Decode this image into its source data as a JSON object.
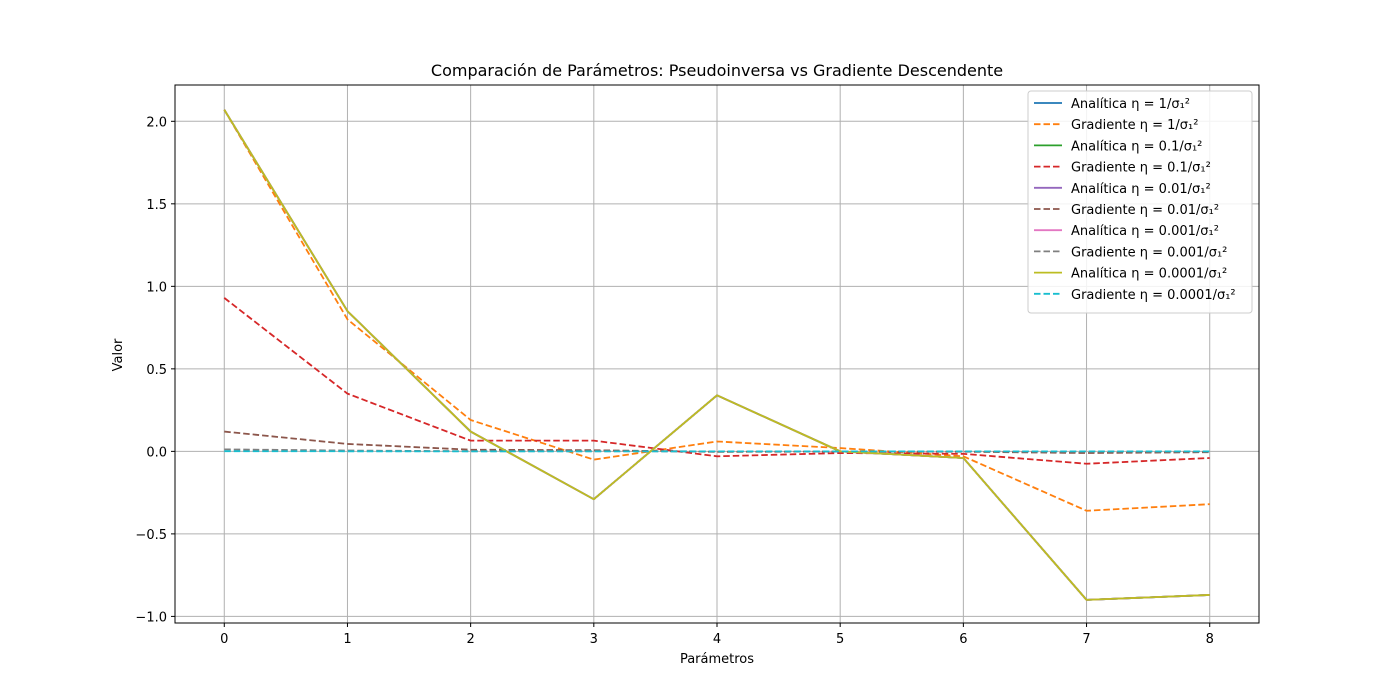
{
  "chart_data": {
    "type": "line",
    "title": "Comparación de Parámetros: Pseudoinversa vs Gradiente Descendente",
    "xlabel": "Parámetros",
    "ylabel": "Valor",
    "x": [
      0,
      1,
      2,
      3,
      4,
      5,
      6,
      7,
      8
    ],
    "xlim": [
      -0.4,
      8.4
    ],
    "ylim": [
      -1.04,
      2.22
    ],
    "xticks": [
      "0",
      "1",
      "2",
      "3",
      "4",
      "5",
      "6",
      "7",
      "8"
    ],
    "yticks": [
      -1.0,
      -0.5,
      0.0,
      0.5,
      1.0,
      1.5,
      2.0
    ],
    "ytick_labels": [
      "−1.0",
      "−0.5",
      "0.0",
      "0.5",
      "1.0",
      "1.5",
      "2.0"
    ],
    "grid": true,
    "legend_position": "top-right",
    "series": [
      {
        "name": "Analítica η = 1/σ₁²",
        "color": "#1f77b4",
        "dash": false,
        "values": [
          2.07,
          0.85,
          0.12,
          -0.29,
          0.34,
          0.0,
          -0.04,
          -0.9,
          -0.87
        ]
      },
      {
        "name": "Gradiente η = 1/σ₁²",
        "color": "#ff7f0e",
        "dash": true,
        "values": [
          2.07,
          0.8,
          0.19,
          -0.05,
          0.06,
          0.02,
          -0.03,
          -0.36,
          -0.32
        ]
      },
      {
        "name": "Analítica η = 0.1/σ₁²",
        "color": "#2ca02c",
        "dash": false,
        "values": [
          2.07,
          0.85,
          0.12,
          -0.29,
          0.34,
          0.0,
          -0.04,
          -0.9,
          -0.87
        ]
      },
      {
        "name": "Gradiente η = 0.1/σ₁²",
        "color": "#d62728",
        "dash": true,
        "values": [
          0.93,
          0.35,
          0.065,
          0.065,
          -0.03,
          -0.01,
          -0.015,
          -0.075,
          -0.04
        ]
      },
      {
        "name": "Analítica η = 0.01/σ₁²",
        "color": "#9467bd",
        "dash": false,
        "values": [
          2.07,
          0.85,
          0.12,
          -0.29,
          0.34,
          0.0,
          -0.04,
          -0.9,
          -0.87
        ]
      },
      {
        "name": "Gradiente η = 0.01/σ₁²",
        "color": "#8c564b",
        "dash": true,
        "values": [
          0.12,
          0.045,
          0.01,
          0.007,
          -0.003,
          -0.001,
          -0.002,
          -0.01,
          -0.005
        ]
      },
      {
        "name": "Analítica η = 0.001/σ₁²",
        "color": "#e377c2",
        "dash": false,
        "values": [
          2.07,
          0.85,
          0.12,
          -0.29,
          0.34,
          0.0,
          -0.04,
          -0.9,
          -0.87
        ]
      },
      {
        "name": "Gradiente η = 0.001/σ₁²",
        "color": "#7f7f7f",
        "dash": true,
        "values": [
          0.012,
          0.005,
          0.001,
          0.001,
          0.0,
          0.0,
          0.0,
          -0.001,
          -0.001
        ]
      },
      {
        "name": "Analítica η = 0.0001/σ₁²",
        "color": "#bcbd22",
        "dash": false,
        "values": [
          2.07,
          0.85,
          0.12,
          -0.29,
          0.34,
          0.0,
          -0.04,
          -0.9,
          -0.87
        ]
      },
      {
        "name": "Gradiente η = 0.0001/σ₁²",
        "color": "#17becf",
        "dash": true,
        "values": [
          0.001,
          0.0005,
          0.0,
          0.0,
          0.0,
          0.0,
          0.0,
          0.0,
          0.0
        ]
      }
    ]
  }
}
